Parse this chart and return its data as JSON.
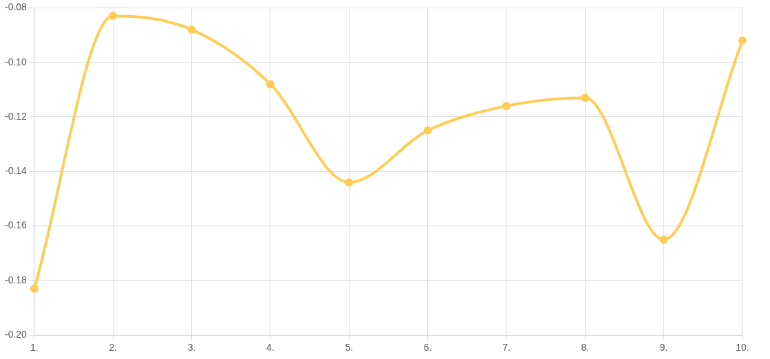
{
  "chart_data": {
    "type": "line",
    "categories": [
      "1.",
      "2.",
      "3.",
      "4.",
      "5.",
      "6.",
      "7.",
      "8.",
      "9.",
      "10."
    ],
    "series": [
      {
        "color": "#ffcd56",
        "values": [
          -0.183,
          -0.083,
          -0.088,
          -0.108,
          -0.144,
          -0.125,
          -0.116,
          -0.113,
          -0.165,
          -0.092
        ]
      }
    ],
    "ylim": [
      -0.2,
      -0.08
    ],
    "yticks": [
      {
        "value": -0.2,
        "label": "-0.20"
      },
      {
        "value": -0.18,
        "label": "-0.18"
      },
      {
        "value": -0.16,
        "label": "-0.16"
      },
      {
        "value": -0.14,
        "label": "-0.14"
      },
      {
        "value": -0.12,
        "label": "-0.12"
      },
      {
        "value": -0.1,
        "label": "-0.10"
      },
      {
        "value": -0.08,
        "label": "-0.08"
      }
    ],
    "grid": true,
    "legend": false,
    "marker": "circle",
    "line_style": "solid"
  }
}
